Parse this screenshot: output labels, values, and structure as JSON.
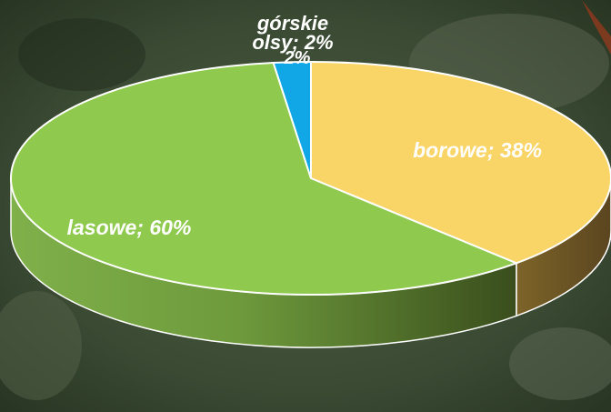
{
  "chart_data": {
    "type": "pie",
    "title": "",
    "slices": [
      {
        "label": "borowe; 38%",
        "value": 38,
        "color": "#f9d466",
        "side": "#6b5326"
      },
      {
        "label": "lasowe; 60%",
        "value": 60,
        "color": "#8fc94e",
        "side": "#3f5520"
      },
      {
        "label": "górskie; 2%",
        "value": 2,
        "color": "#11a6e6",
        "side": "#0b5e80"
      },
      {
        "label": "olsy; 2%",
        "value": 2,
        "color": "#cc3333",
        "side": "#7a1f1f"
      }
    ],
    "labels": {
      "borowe": "borowe; 38%",
      "lasowe": "lasowe; 60%",
      "gorskie_line1": "górskie",
      "gorskie_line2": "olsy; 2%",
      "olsy_pct": "2%"
    },
    "legend": "none",
    "style": "3d-exploded-none"
  }
}
